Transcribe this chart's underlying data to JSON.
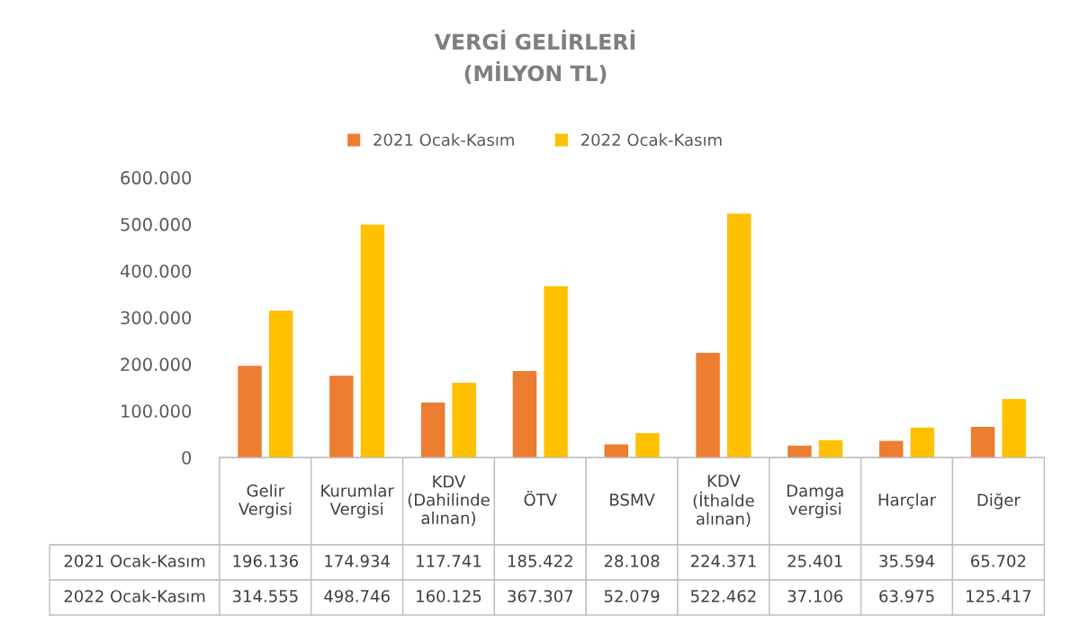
{
  "chart_data": {
    "type": "bar",
    "title": "VERGİ GELİRLERİ\n(MİLYON TL)",
    "categories": [
      "Gelir Vergisi",
      "Kurumlar Vergisi",
      "KDV (Dahilinde alınan)",
      "ÖTV",
      "BSMV",
      "KDV (İthalde alınan)",
      "Damga vergisi",
      "Harçlar",
      "Diğer"
    ],
    "series": [
      {
        "name": "2021 Ocak-Kasım",
        "color": "#ed7d31",
        "values": [
          196136,
          174934,
          117741,
          185422,
          28108,
          224371,
          25401,
          35594,
          65702
        ],
        "value_labels": [
          "196.136",
          "174.934",
          "117.741",
          "185.422",
          "28.108",
          "224.371",
          "25.401",
          "35.594",
          "65.702"
        ]
      },
      {
        "name": "2022 Ocak-Kasım",
        "color": "#ffc000",
        "values": [
          314555,
          498746,
          160125,
          367307,
          52079,
          522462,
          37106,
          63975,
          125417
        ],
        "value_labels": [
          "314.555",
          "498.746",
          "160.125",
          "367.307",
          "52.079",
          "522.462",
          "37.106",
          "63.975",
          "125.417"
        ]
      }
    ],
    "ylim": [
      0,
      600000
    ],
    "yticks": [
      {
        "value": 0,
        "label": "0"
      },
      {
        "value": 100000,
        "label": "100.000"
      },
      {
        "value": 200000,
        "label": "200.000"
      },
      {
        "value": 300000,
        "label": "300.000"
      },
      {
        "value": 400000,
        "label": "400.000"
      },
      {
        "value": 500000,
        "label": "500.000"
      },
      {
        "value": 600000,
        "label": "600.000"
      }
    ],
    "legend": "top",
    "grid": false
  }
}
